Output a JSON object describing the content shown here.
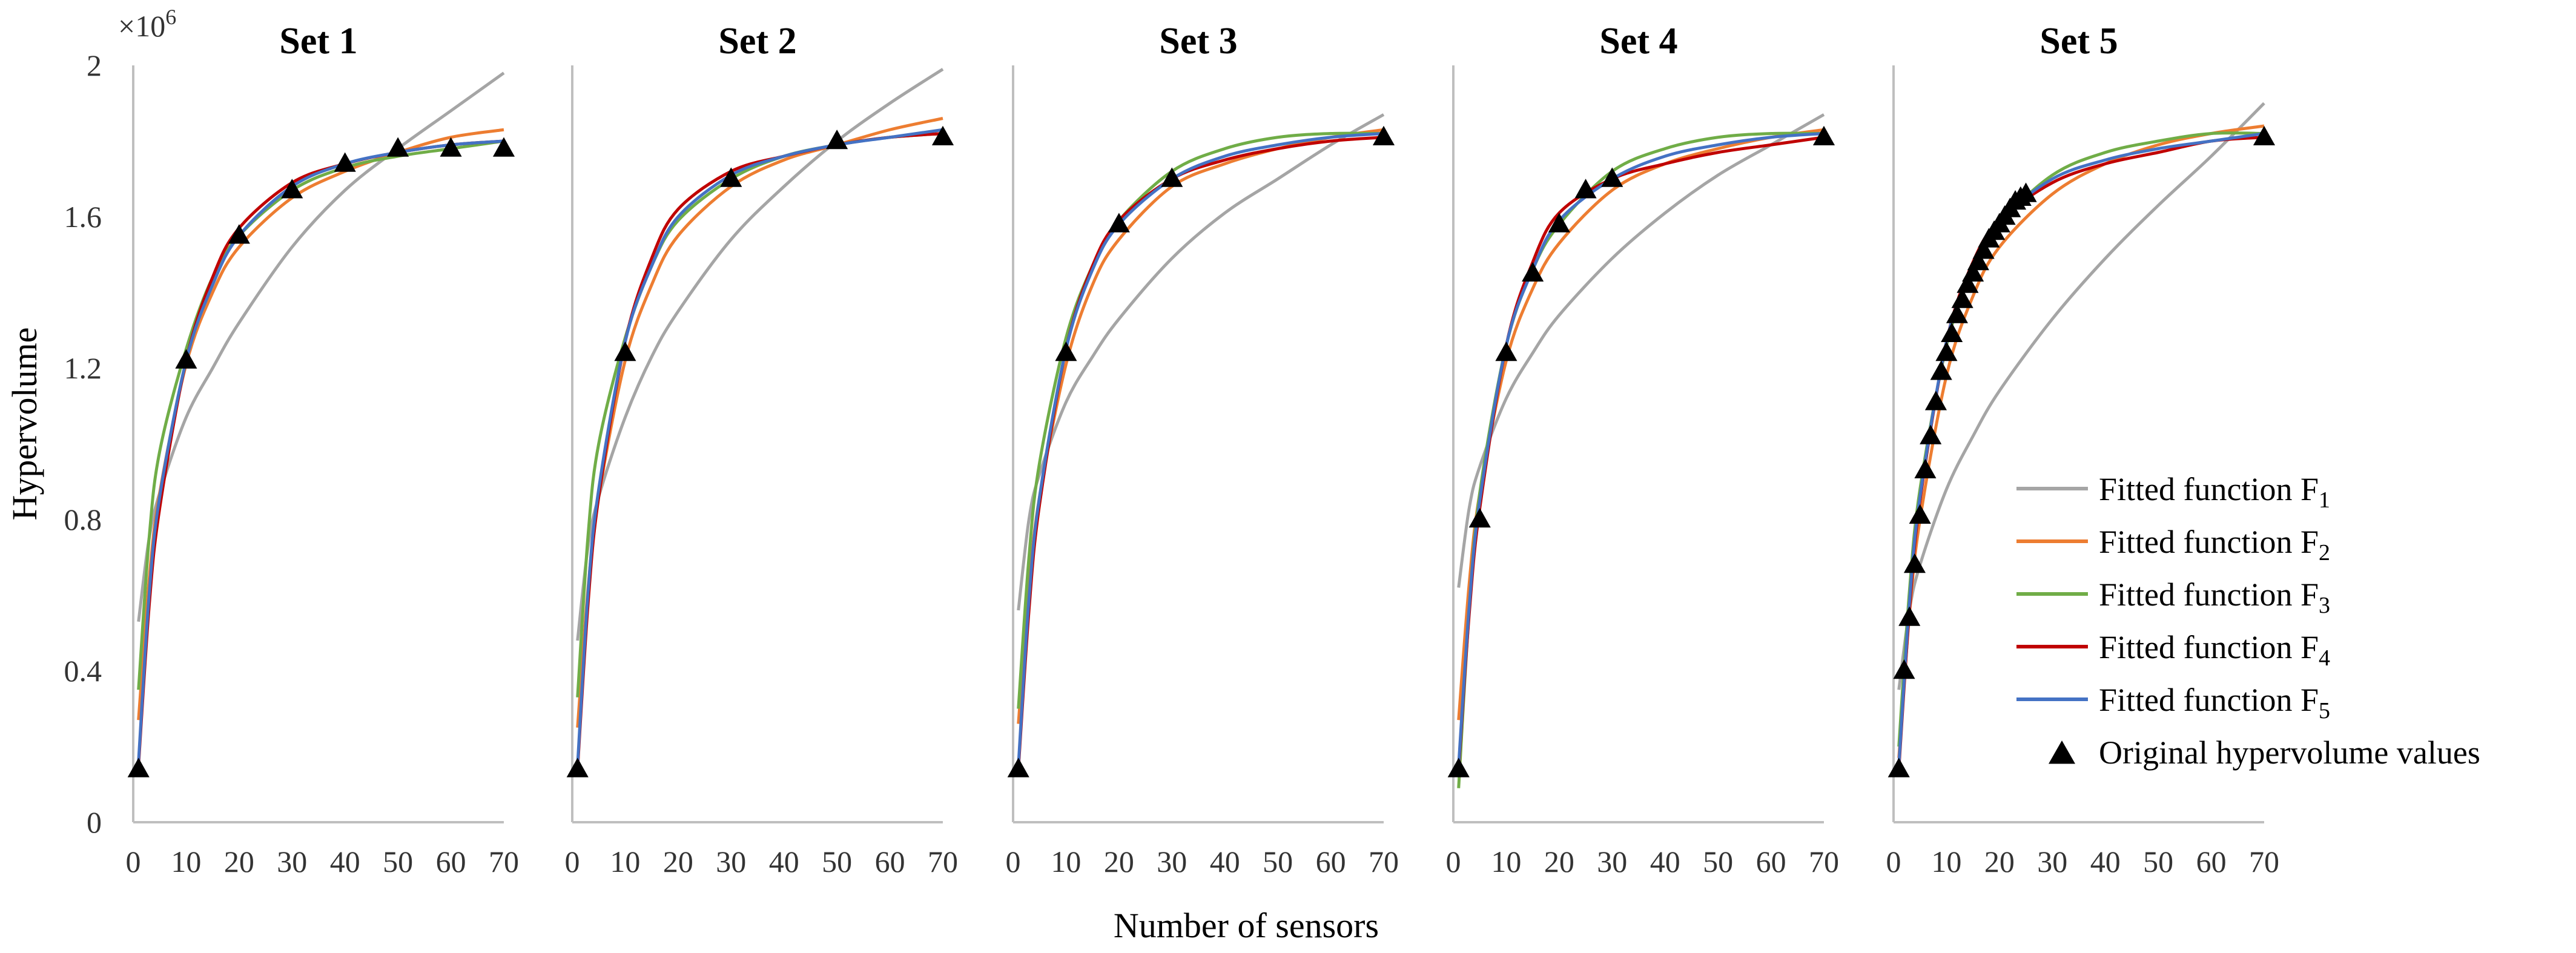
{
  "figure": {
    "ylabel": "Hypervolume",
    "xlabel": "Number of sensors",
    "y_multiplier_base": "×10",
    "y_multiplier_exp": "6",
    "yticks": [
      "0",
      "0.4",
      "0.8",
      "1.2",
      "1.6",
      "2"
    ],
    "xticks": [
      "0",
      "10",
      "20",
      "30",
      "40",
      "50",
      "60",
      "70"
    ],
    "legend": {
      "placement": "right, inside Set 5 panel",
      "entries": [
        {
          "label": "Fitted function F",
          "sub": "1",
          "color": "#A5A5A5",
          "kind": "line"
        },
        {
          "label": "Fitted function F",
          "sub": "2",
          "color": "#ED7D31",
          "kind": "line"
        },
        {
          "label": "Fitted function F",
          "sub": "3",
          "color": "#70AD47",
          "kind": "line"
        },
        {
          "label": "Fitted function F",
          "sub": "4",
          "color": "#C00000",
          "kind": "line"
        },
        {
          "label": "Fitted function F",
          "sub": "5",
          "color": "#4472C4",
          "kind": "line"
        },
        {
          "label": "Original hypervolume values",
          "sub": "",
          "color": "#000000",
          "kind": "triangle"
        }
      ]
    }
  },
  "chart_data": [
    {
      "type": "line",
      "title": "Set 1",
      "xlim": [
        0,
        70
      ],
      "ylim": [
        0,
        2000000
      ],
      "grid": false,
      "series": [
        {
          "name": "Fitted function F1",
          "color": "#A5A5A5",
          "x": [
            1,
            3,
            5,
            10,
            15,
            20,
            30,
            40,
            50,
            60,
            70
          ],
          "y": [
            530000,
            750000,
            870000,
            1070000,
            1200000,
            1320000,
            1520000,
            1670000,
            1780000,
            1880000,
            1980000
          ]
        },
        {
          "name": "Fitted function F2",
          "color": "#ED7D31",
          "x": [
            1,
            3,
            5,
            10,
            15,
            20,
            30,
            40,
            50,
            60,
            70
          ],
          "y": [
            270000,
            640000,
            870000,
            1210000,
            1400000,
            1520000,
            1650000,
            1720000,
            1770000,
            1810000,
            1830000
          ]
        },
        {
          "name": "Fitted function F3",
          "color": "#70AD47",
          "x": [
            1,
            3,
            5,
            10,
            15,
            20,
            30,
            40,
            50,
            60,
            70
          ],
          "y": [
            350000,
            750000,
            980000,
            1250000,
            1440000,
            1550000,
            1670000,
            1730000,
            1760000,
            1780000,
            1800000
          ]
        },
        {
          "name": "Fitted function F4",
          "color": "#C00000",
          "x": [
            1,
            3,
            5,
            10,
            15,
            20,
            30,
            40,
            50,
            60,
            70
          ],
          "y": [
            150000,
            570000,
            830000,
            1220000,
            1440000,
            1570000,
            1690000,
            1740000,
            1770000,
            1790000,
            1800000
          ]
        },
        {
          "name": "Fitted function F5",
          "color": "#4472C4",
          "x": [
            1,
            3,
            5,
            10,
            15,
            20,
            30,
            40,
            50,
            60,
            70
          ],
          "y": [
            160000,
            600000,
            860000,
            1220000,
            1420000,
            1550000,
            1680000,
            1740000,
            1770000,
            1790000,
            1800000
          ]
        },
        {
          "name": "Original hypervolume values",
          "marker": "triangle",
          "color": "#000000",
          "x": [
            1,
            10,
            20,
            30,
            40,
            50,
            60,
            70
          ],
          "y": [
            140000,
            1220000,
            1550000,
            1670000,
            1740000,
            1780000,
            1780000,
            1780000
          ]
        }
      ]
    },
    {
      "type": "line",
      "title": "Set 2",
      "xlim": [
        0,
        70
      ],
      "ylim": [
        0,
        2000000
      ],
      "grid": false,
      "series": [
        {
          "name": "Fitted function F1",
          "color": "#A5A5A5",
          "x": [
            1,
            3,
            5,
            10,
            15,
            20,
            30,
            40,
            50,
            60,
            70
          ],
          "y": [
            480000,
            730000,
            860000,
            1070000,
            1230000,
            1350000,
            1540000,
            1680000,
            1800000,
            1900000,
            1990000
          ]
        },
        {
          "name": "Fitted function F2",
          "color": "#ED7D31",
          "x": [
            1,
            3,
            5,
            10,
            15,
            20,
            30,
            40,
            50,
            60,
            70
          ],
          "y": [
            250000,
            620000,
            860000,
            1220000,
            1420000,
            1550000,
            1680000,
            1750000,
            1790000,
            1830000,
            1860000
          ]
        },
        {
          "name": "Fitted function F3",
          "color": "#70AD47",
          "x": [
            1,
            3,
            5,
            10,
            15,
            20,
            30,
            40,
            50,
            60,
            70
          ],
          "y": [
            330000,
            760000,
            1000000,
            1280000,
            1470000,
            1590000,
            1700000,
            1760000,
            1790000,
            1810000,
            1820000
          ]
        },
        {
          "name": "Fitted function F4",
          "color": "#C00000",
          "x": [
            1,
            3,
            5,
            10,
            15,
            20,
            30,
            40,
            50,
            60,
            70
          ],
          "y": [
            140000,
            580000,
            860000,
            1270000,
            1490000,
            1620000,
            1720000,
            1760000,
            1790000,
            1810000,
            1820000
          ]
        },
        {
          "name": "Fitted function F5",
          "color": "#4472C4",
          "x": [
            1,
            3,
            5,
            10,
            15,
            20,
            30,
            40,
            50,
            60,
            70
          ],
          "y": [
            150000,
            610000,
            880000,
            1270000,
            1470000,
            1600000,
            1710000,
            1760000,
            1790000,
            1810000,
            1830000
          ]
        },
        {
          "name": "Original hypervolume values",
          "marker": "triangle",
          "color": "#000000",
          "x": [
            1,
            10,
            30,
            50,
            70
          ],
          "y": [
            140000,
            1240000,
            1700000,
            1800000,
            1810000
          ]
        }
      ]
    },
    {
      "type": "line",
      "title": "Set 3",
      "xlim": [
        0,
        70
      ],
      "ylim": [
        0,
        2000000
      ],
      "grid": false,
      "series": [
        {
          "name": "Fitted function F1",
          "color": "#A5A5A5",
          "x": [
            1,
            3,
            5,
            10,
            15,
            20,
            30,
            40,
            50,
            60,
            70
          ],
          "y": [
            560000,
            800000,
            920000,
            1110000,
            1230000,
            1330000,
            1490000,
            1610000,
            1700000,
            1790000,
            1870000
          ]
        },
        {
          "name": "Fitted function F2",
          "color": "#ED7D31",
          "x": [
            1,
            3,
            5,
            10,
            15,
            20,
            30,
            40,
            50,
            60,
            70
          ],
          "y": [
            260000,
            620000,
            860000,
            1210000,
            1420000,
            1540000,
            1680000,
            1740000,
            1780000,
            1810000,
            1830000
          ]
        },
        {
          "name": "Fitted function F3",
          "color": "#70AD47",
          "x": [
            1,
            3,
            5,
            10,
            15,
            20,
            30,
            40,
            50,
            60,
            70
          ],
          "y": [
            300000,
            700000,
            950000,
            1280000,
            1470000,
            1590000,
            1720000,
            1780000,
            1810000,
            1820000,
            1820000
          ]
        },
        {
          "name": "Fitted function F4",
          "color": "#C00000",
          "x": [
            1,
            3,
            5,
            10,
            15,
            20,
            30,
            40,
            50,
            60,
            70
          ],
          "y": [
            140000,
            560000,
            840000,
            1250000,
            1470000,
            1590000,
            1700000,
            1750000,
            1780000,
            1800000,
            1810000
          ]
        },
        {
          "name": "Fitted function F5",
          "color": "#4472C4",
          "x": [
            1,
            3,
            5,
            10,
            15,
            20,
            30,
            40,
            50,
            60,
            70
          ],
          "y": [
            150000,
            590000,
            860000,
            1250000,
            1460000,
            1580000,
            1700000,
            1760000,
            1790000,
            1810000,
            1820000
          ]
        },
        {
          "name": "Original hypervolume values",
          "marker": "triangle",
          "color": "#000000",
          "x": [
            1,
            10,
            20,
            30,
            70
          ],
          "y": [
            140000,
            1240000,
            1580000,
            1700000,
            1810000
          ]
        }
      ]
    },
    {
      "type": "line",
      "title": "Set 4",
      "xlim": [
        0,
        70
      ],
      "ylim": [
        0,
        2000000
      ],
      "grid": false,
      "series": [
        {
          "name": "Fitted function F1",
          "color": "#A5A5A5",
          "x": [
            1,
            3,
            5,
            10,
            15,
            20,
            30,
            40,
            50,
            60,
            70
          ],
          "y": [
            620000,
            830000,
            940000,
            1120000,
            1240000,
            1340000,
            1490000,
            1610000,
            1710000,
            1790000,
            1870000
          ]
        },
        {
          "name": "Fitted function F2",
          "color": "#ED7D31",
          "x": [
            1,
            3,
            5,
            10,
            15,
            20,
            30,
            40,
            50,
            60,
            70
          ],
          "y": [
            270000,
            630000,
            870000,
            1220000,
            1410000,
            1530000,
            1670000,
            1740000,
            1780000,
            1810000,
            1830000
          ]
        },
        {
          "name": "Fitted function F3",
          "color": "#70AD47",
          "x": [
            1,
            3,
            5,
            10,
            15,
            20,
            30,
            40,
            50,
            60,
            70
          ],
          "y": [
            90000,
            560000,
            870000,
            1260000,
            1460000,
            1580000,
            1720000,
            1780000,
            1810000,
            1820000,
            1820000
          ]
        },
        {
          "name": "Fitted function F4",
          "color": "#C00000",
          "x": [
            1,
            3,
            5,
            10,
            15,
            20,
            30,
            40,
            50,
            60,
            70
          ],
          "y": [
            140000,
            550000,
            830000,
            1260000,
            1480000,
            1610000,
            1700000,
            1740000,
            1770000,
            1790000,
            1810000
          ]
        },
        {
          "name": "Fitted function F5",
          "color": "#4472C4",
          "x": [
            1,
            3,
            5,
            10,
            15,
            20,
            30,
            40,
            50,
            60,
            70
          ],
          "y": [
            150000,
            570000,
            850000,
            1260000,
            1460000,
            1590000,
            1700000,
            1760000,
            1790000,
            1810000,
            1820000
          ]
        },
        {
          "name": "Original hypervolume values",
          "marker": "triangle",
          "color": "#000000",
          "x": [
            1,
            5,
            10,
            15,
            20,
            25,
            30,
            70
          ],
          "y": [
            140000,
            800000,
            1240000,
            1450000,
            1580000,
            1670000,
            1700000,
            1810000
          ]
        }
      ]
    },
    {
      "type": "line",
      "title": "Set 5",
      "xlim": [
        0,
        70
      ],
      "ylim": [
        0,
        2000000
      ],
      "grid": false,
      "series": [
        {
          "name": "Fitted function F1",
          "color": "#A5A5A5",
          "x": [
            1,
            3,
            5,
            10,
            15,
            20,
            30,
            40,
            50,
            60,
            70
          ],
          "y": [
            350000,
            560000,
            680000,
            880000,
            1020000,
            1140000,
            1330000,
            1490000,
            1630000,
            1760000,
            1900000
          ]
        },
        {
          "name": "Fitted function F2",
          "color": "#ED7D31",
          "x": [
            1,
            3,
            5,
            10,
            15,
            20,
            30,
            40,
            50,
            60,
            70
          ],
          "y": [
            170000,
            550000,
            800000,
            1180000,
            1390000,
            1520000,
            1660000,
            1740000,
            1790000,
            1820000,
            1840000
          ]
        },
        {
          "name": "Fitted function F3",
          "color": "#70AD47",
          "x": [
            1,
            3,
            5,
            10,
            15,
            20,
            30,
            40,
            50,
            60,
            70
          ],
          "y": [
            200000,
            610000,
            880000,
            1260000,
            1460000,
            1580000,
            1710000,
            1770000,
            1800000,
            1820000,
            1820000
          ]
        },
        {
          "name": "Fitted function F4",
          "color": "#C00000",
          "x": [
            1,
            3,
            5,
            10,
            15,
            20,
            30,
            40,
            50,
            60,
            70
          ],
          "y": [
            140000,
            560000,
            850000,
            1270000,
            1480000,
            1590000,
            1690000,
            1740000,
            1770000,
            1800000,
            1810000
          ]
        },
        {
          "name": "Fitted function F5",
          "color": "#4472C4",
          "x": [
            1,
            3,
            5,
            10,
            15,
            20,
            30,
            40,
            50,
            60,
            70
          ],
          "y": [
            150000,
            580000,
            860000,
            1270000,
            1470000,
            1590000,
            1700000,
            1750000,
            1780000,
            1800000,
            1820000
          ]
        },
        {
          "name": "Original hypervolume values",
          "marker": "triangle",
          "color": "#000000",
          "x": [
            1,
            2,
            3,
            4,
            5,
            6,
            7,
            8,
            9,
            10,
            11,
            12,
            13,
            14,
            15,
            16,
            17,
            18,
            19,
            20,
            21,
            22,
            23,
            24,
            25,
            70
          ],
          "y": [
            140000,
            400000,
            540000,
            680000,
            810000,
            930000,
            1020000,
            1110000,
            1190000,
            1240000,
            1290000,
            1340000,
            1380000,
            1420000,
            1450000,
            1480000,
            1510000,
            1540000,
            1560000,
            1580000,
            1600000,
            1620000,
            1640000,
            1650000,
            1660000,
            1810000
          ]
        }
      ]
    }
  ]
}
